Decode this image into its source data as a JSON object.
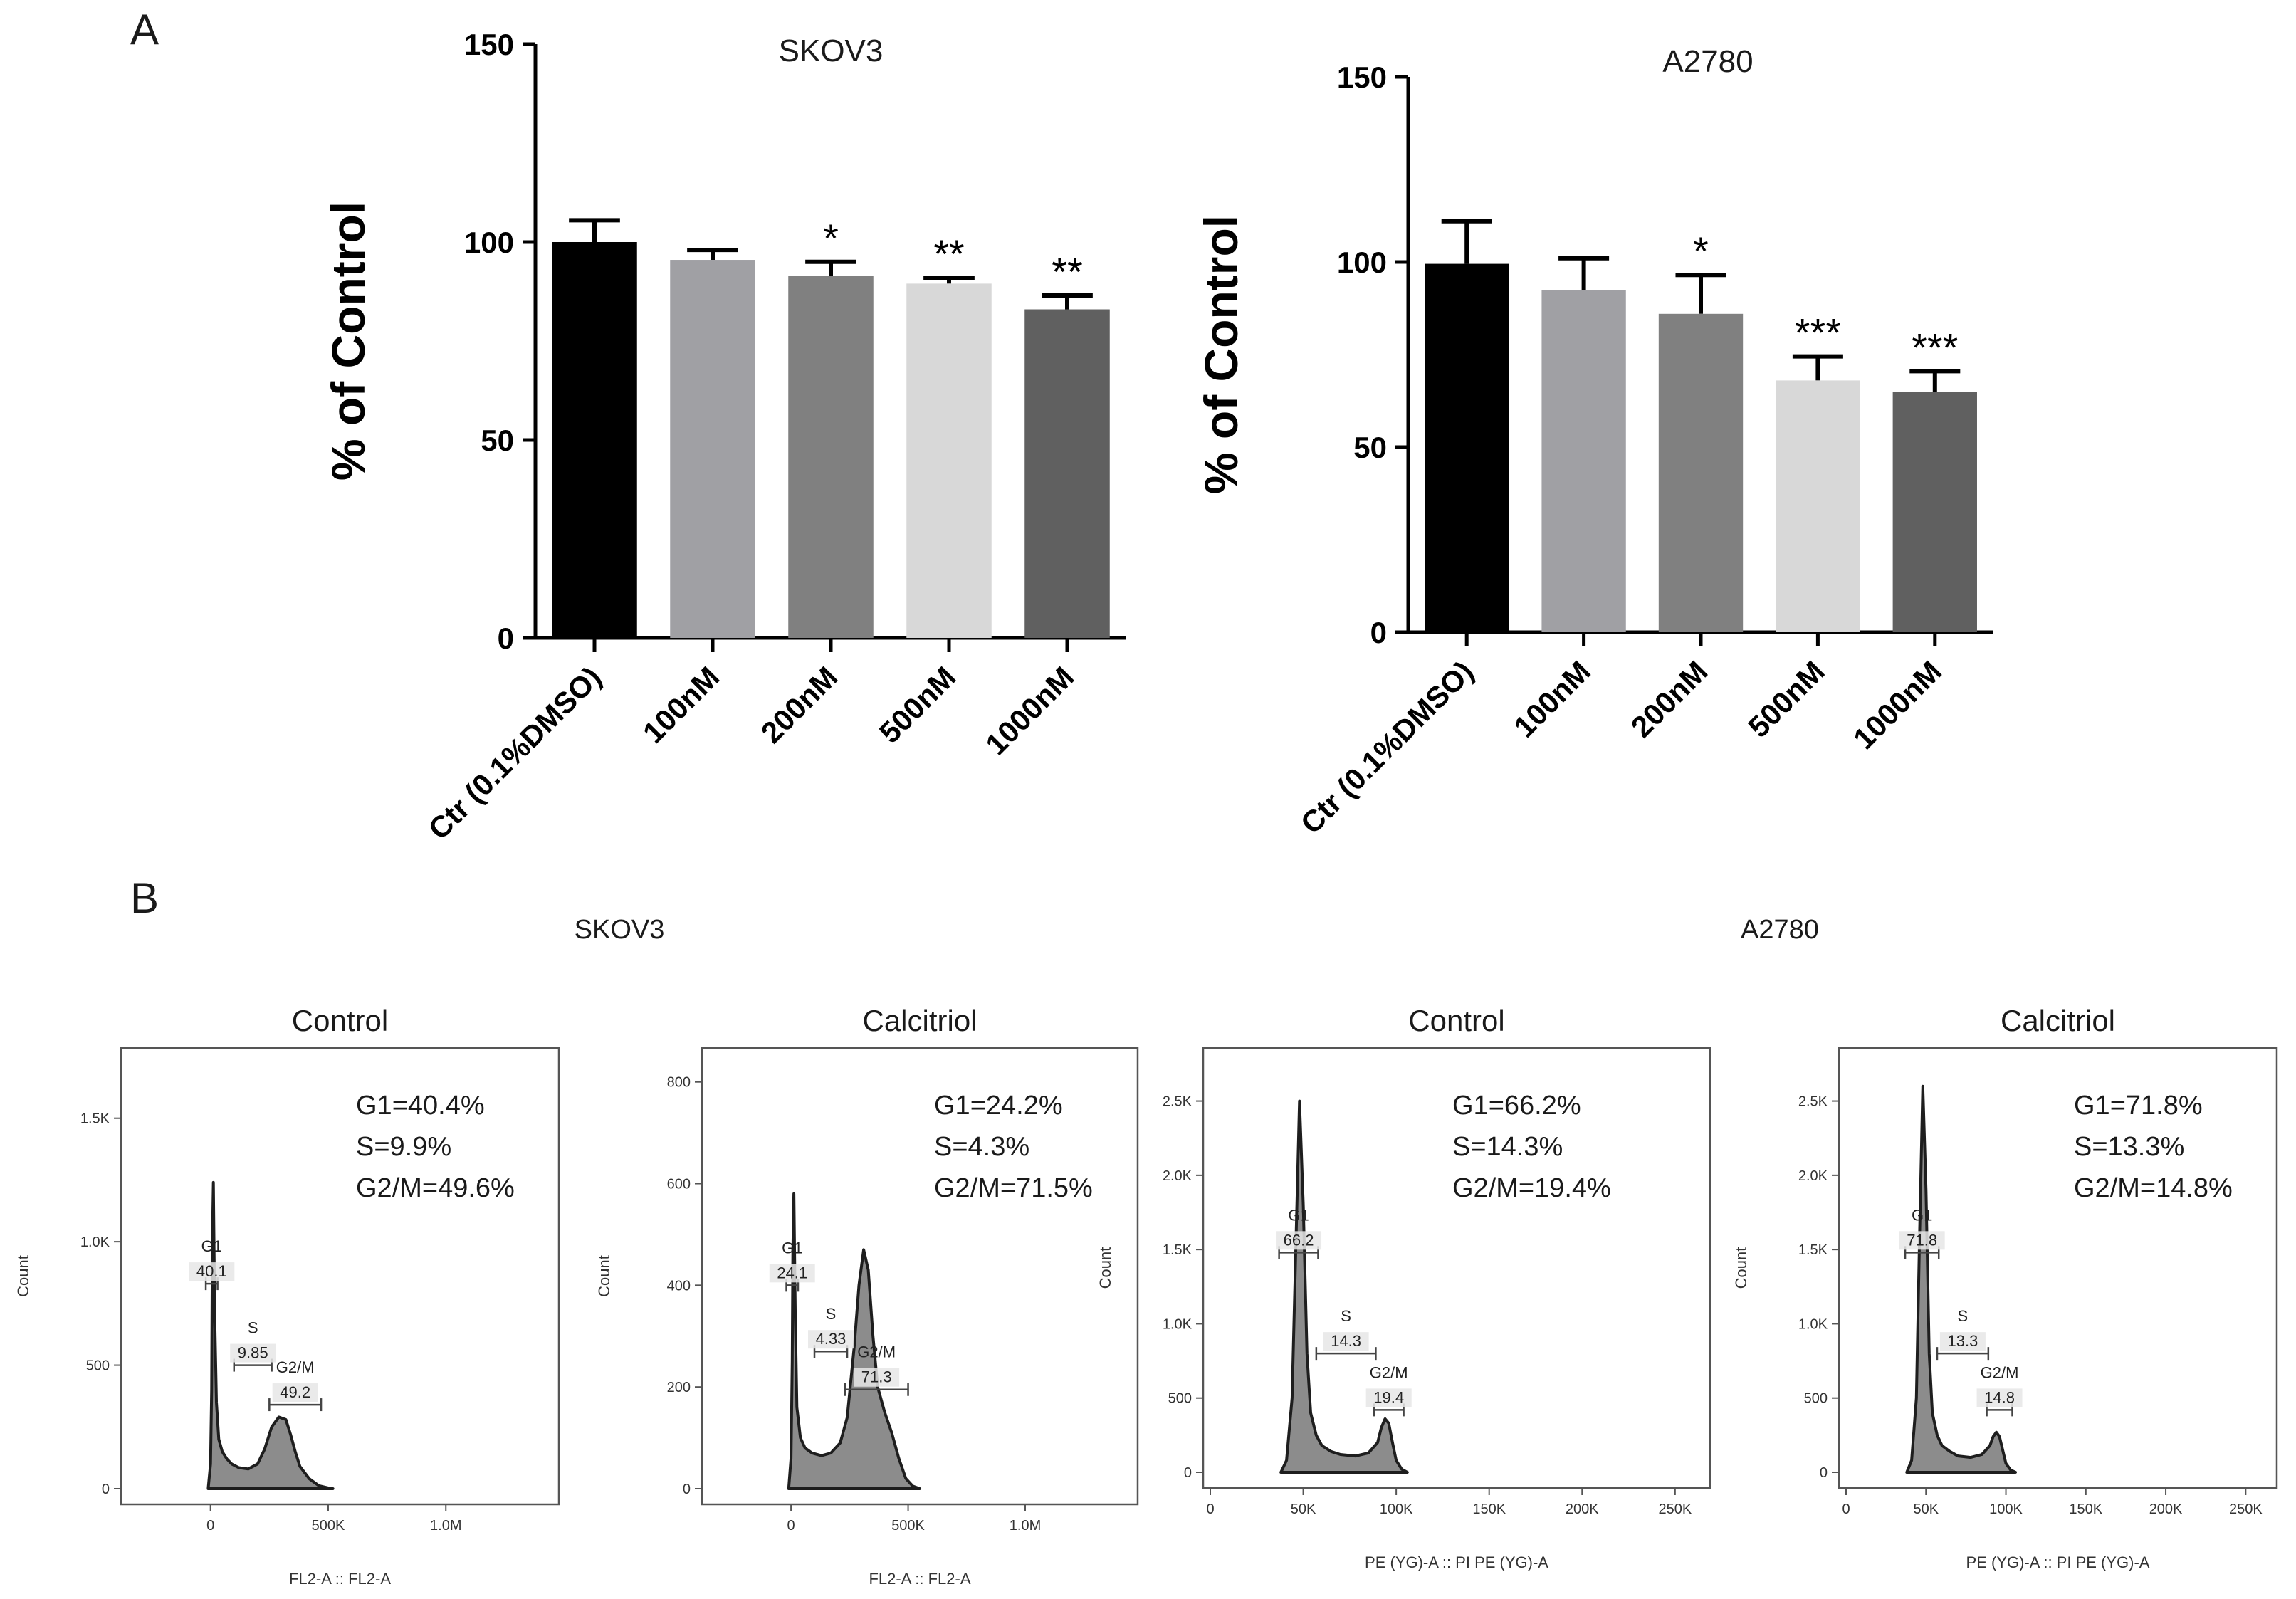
{
  "panel_labels": {
    "a": "A",
    "b": "B"
  },
  "panel_b_groups": {
    "left": "SKOV3",
    "right": "A2780"
  },
  "chart_data": [
    {
      "type": "bar",
      "title": "SKOV3",
      "ylabel": "% of Control",
      "xlabel": "",
      "ylim": [
        0,
        150
      ],
      "yticks": [
        "0",
        "50",
        "100",
        "150"
      ],
      "categories": [
        "Ctr (0.1%DMSO)",
        "100nM",
        "200nM",
        "500nM",
        "1000nM"
      ],
      "values": [
        100,
        95.5,
        91.5,
        89.5,
        83
      ],
      "errors": [
        5.5,
        2.5,
        3.5,
        1.5,
        3.5
      ],
      "significance": [
        "",
        "",
        "*",
        "**",
        "**"
      ],
      "colors": [
        "#000000",
        "#a0a0a4",
        "#808080",
        "#d8d8d8",
        "#606060"
      ]
    },
    {
      "type": "bar",
      "title": "A2780",
      "ylabel": "% of Control",
      "xlabel": "",
      "ylim": [
        0,
        150
      ],
      "yticks": [
        "0",
        "50",
        "100",
        "150"
      ],
      "categories": [
        "Ctr (0.1%DMSO)",
        "100nM",
        "200nM",
        "500nM",
        "1000nM"
      ],
      "values": [
        99.5,
        92.5,
        86,
        68,
        65
      ],
      "errors": [
        11.5,
        8.5,
        10.5,
        6.5,
        5.5
      ],
      "significance": [
        "",
        "",
        "*",
        "***",
        "***"
      ],
      "colors": [
        "#000000",
        "#a0a0a4",
        "#808080",
        "#d8d8d8",
        "#606060"
      ]
    },
    {
      "type": "area",
      "title": "Control",
      "cell_line": "SKOV3",
      "xlabel": "FL2-A :: FL2-A",
      "ylabel": "Count",
      "xlim": [
        -350,
        1450
      ],
      "ylim": [
        0,
        1750
      ],
      "xticks": [
        {
          "v": 0,
          "label": "0"
        },
        {
          "v": 500,
          "label": "500K"
        },
        {
          "v": 1000,
          "label": "1.0M"
        }
      ],
      "yticks": [
        {
          "v": 0,
          "label": "0"
        },
        {
          "v": 500,
          "label": "500"
        },
        {
          "v": 1000,
          "label": "1.0K"
        },
        {
          "v": 1500,
          "label": "1.5K"
        }
      ],
      "x": [
        -10,
        0,
        5,
        8,
        12,
        18,
        25,
        35,
        50,
        70,
        90,
        120,
        160,
        200,
        230,
        260,
        290,
        320,
        340,
        360,
        380,
        420,
        460,
        500,
        520
      ],
      "y": [
        0,
        100,
        400,
        1000,
        1240,
        700,
        350,
        200,
        150,
        120,
        100,
        85,
        80,
        100,
        160,
        250,
        290,
        280,
        220,
        150,
        90,
        40,
        12,
        3,
        0
      ],
      "summary": [
        "G1=40.4%",
        "S=9.9%",
        "G2/M=49.6%"
      ],
      "gates": [
        {
          "name": "G1",
          "value": "40.1",
          "x1": -20,
          "x2": 30,
          "y": 830
        },
        {
          "name": "S",
          "value": "9.85",
          "x1": 100,
          "x2": 260,
          "y": 500
        },
        {
          "name": "G2/M",
          "value": "49.2",
          "x1": 250,
          "x2": 470,
          "y": 340
        }
      ]
    },
    {
      "type": "area",
      "title": "Calcitriol",
      "cell_line": "SKOV3",
      "xlabel": "FL2-A :: FL2-A",
      "ylabel": "Count",
      "xlim": [
        -350,
        1450
      ],
      "ylim": [
        0,
        850
      ],
      "xticks": [
        {
          "v": 0,
          "label": "0"
        },
        {
          "v": 500,
          "label": "500K"
        },
        {
          "v": 1000,
          "label": "1.0M"
        }
      ],
      "yticks": [
        {
          "v": 0,
          "label": "0"
        },
        {
          "v": 200,
          "label": "200"
        },
        {
          "v": 400,
          "label": "400"
        },
        {
          "v": 600,
          "label": "600"
        },
        {
          "v": 800,
          "label": "800"
        }
      ],
      "x": [
        -10,
        0,
        5,
        8,
        12,
        18,
        25,
        40,
        60,
        90,
        130,
        170,
        210,
        240,
        270,
        290,
        310,
        330,
        350,
        370,
        400,
        430,
        460,
        490,
        520,
        550
      ],
      "y": [
        0,
        60,
        250,
        470,
        580,
        350,
        160,
        100,
        80,
        70,
        65,
        70,
        90,
        140,
        280,
        400,
        470,
        430,
        300,
        200,
        150,
        110,
        60,
        20,
        5,
        0
      ],
      "summary": [
        "G1=24.2%",
        "S=4.3%",
        "G2/M=71.5%"
      ],
      "gates": [
        {
          "name": "G1",
          "value": "24.1",
          "x1": -20,
          "x2": 30,
          "y": 400
        },
        {
          "name": "S",
          "value": "4.33",
          "x1": 100,
          "x2": 240,
          "y": 270
        },
        {
          "name": "G2/M",
          "value": "71.3",
          "x1": 230,
          "x2": 500,
          "y": 195
        }
      ]
    },
    {
      "type": "area",
      "title": "Control",
      "cell_line": "A2780",
      "xlabel": "PE (YG)-A :: PI PE (YG)-A",
      "ylabel": "Count",
      "xlim": [
        0,
        265
      ],
      "ylim": [
        0,
        2800
      ],
      "xticks": [
        {
          "v": 0,
          "label": "0"
        },
        {
          "v": 50,
          "label": "50K"
        },
        {
          "v": 100,
          "label": "100K"
        },
        {
          "v": 150,
          "label": "150K"
        },
        {
          "v": 200,
          "label": "200K"
        },
        {
          "v": 250,
          "label": "250K"
        }
      ],
      "yticks": [
        {
          "v": 0,
          "label": "0"
        },
        {
          "v": 500,
          "label": "500"
        },
        {
          "v": 1000,
          "label": "1.0K"
        },
        {
          "v": 1500,
          "label": "1.5K"
        },
        {
          "v": 2000,
          "label": "2.0K"
        },
        {
          "v": 2500,
          "label": "2.5K"
        }
      ],
      "x": [
        38,
        41,
        44,
        46,
        48,
        50,
        52,
        54,
        57,
        60,
        65,
        70,
        78,
        85,
        90,
        92,
        94,
        96,
        98,
        100,
        103,
        106
      ],
      "y": [
        0,
        80,
        500,
        1500,
        2500,
        1800,
        800,
        400,
        250,
        180,
        140,
        120,
        110,
        130,
        200,
        300,
        360,
        330,
        200,
        80,
        20,
        0
      ],
      "summary": [
        "G1=66.2%",
        "S=14.3%",
        "G2/M=19.4%"
      ],
      "gates": [
        {
          "name": "G1",
          "value": "66.2",
          "x1": 37,
          "x2": 58,
          "y": 1480
        },
        {
          "name": "S",
          "value": "14.3",
          "x1": 57,
          "x2": 89,
          "y": 800
        },
        {
          "name": "G2/M",
          "value": "19.4",
          "x1": 88,
          "x2": 104,
          "y": 420
        }
      ]
    },
    {
      "type": "area",
      "title": "Calcitriol",
      "cell_line": "A2780",
      "xlabel": "PE (YG)-A :: PI PE (YG)-A",
      "ylabel": "Count",
      "xlim": [
        0,
        265
      ],
      "ylim": [
        0,
        2800
      ],
      "xticks": [
        {
          "v": 0,
          "label": "0"
        },
        {
          "v": 50,
          "label": "50K"
        },
        {
          "v": 100,
          "label": "100K"
        },
        {
          "v": 150,
          "label": "150K"
        },
        {
          "v": 200,
          "label": "200K"
        },
        {
          "v": 250,
          "label": "250K"
        }
      ],
      "yticks": [
        {
          "v": 0,
          "label": "0"
        },
        {
          "v": 500,
          "label": "500"
        },
        {
          "v": 1000,
          "label": "1.0K"
        },
        {
          "v": 1500,
          "label": "1.5K"
        },
        {
          "v": 2000,
          "label": "2.0K"
        },
        {
          "v": 2500,
          "label": "2.5K"
        }
      ],
      "x": [
        38,
        41,
        44,
        46,
        48,
        50,
        52,
        54,
        57,
        60,
        65,
        70,
        78,
        85,
        90,
        92,
        94,
        96,
        98,
        100,
        103,
        106
      ],
      "y": [
        0,
        80,
        500,
        1600,
        2600,
        1900,
        800,
        400,
        250,
        180,
        140,
        110,
        100,
        120,
        180,
        240,
        270,
        240,
        150,
        60,
        15,
        0
      ],
      "summary": [
        "G1=71.8%",
        "S=13.3%",
        "G2/M=14.8%"
      ],
      "gates": [
        {
          "name": "G1",
          "value": "71.8",
          "x1": 37,
          "x2": 58,
          "y": 1480
        },
        {
          "name": "S",
          "value": "13.3",
          "x1": 57,
          "x2": 89,
          "y": 800
        },
        {
          "name": "G2/M",
          "value": "14.8",
          "x1": 88,
          "x2": 104,
          "y": 420
        }
      ]
    }
  ]
}
